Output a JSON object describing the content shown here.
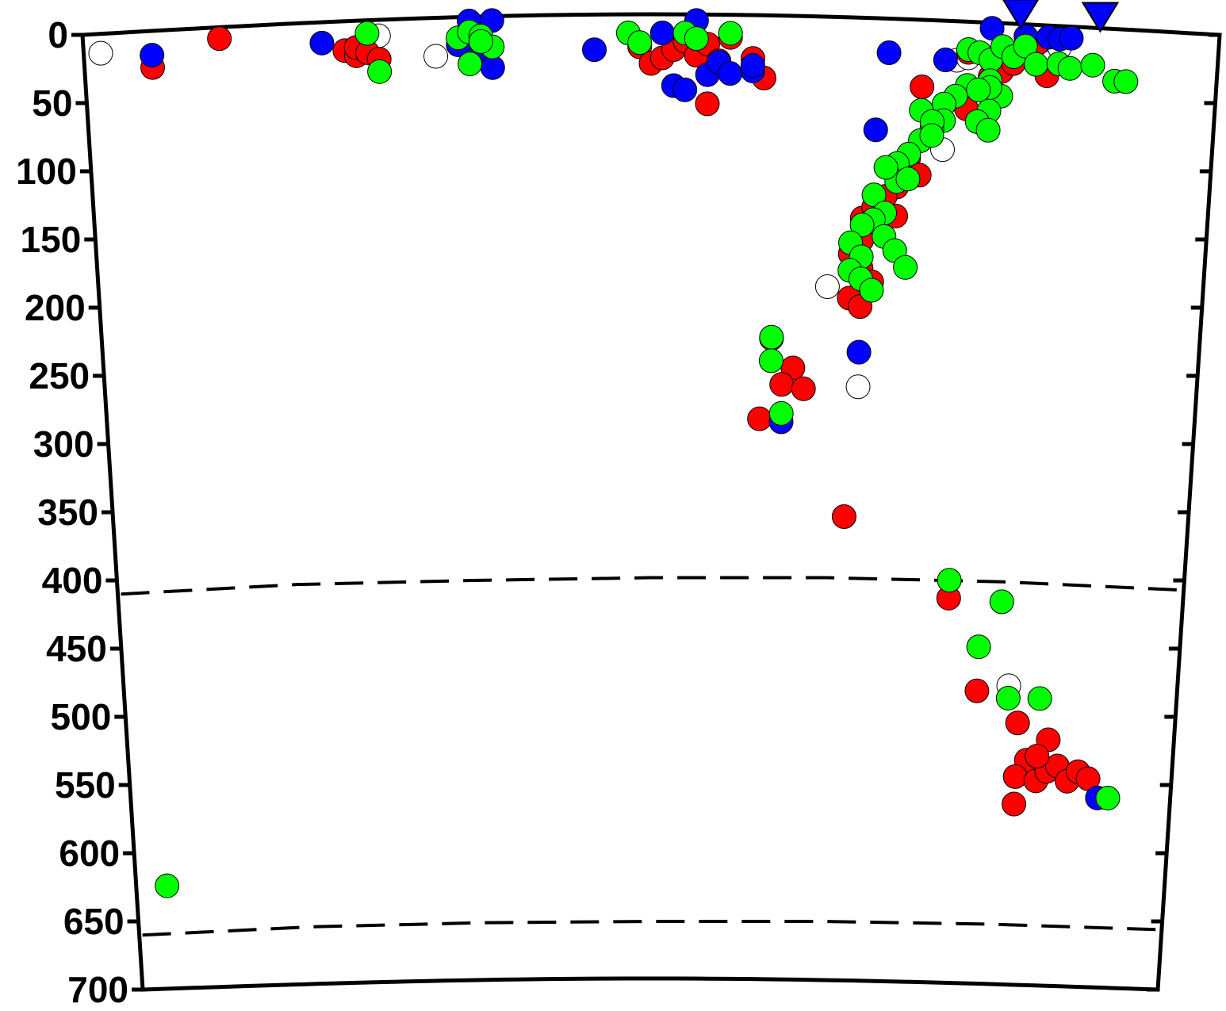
{
  "chart_data": {
    "type": "scatter",
    "y_axis": {
      "ticks": [
        "0",
        "50",
        "100",
        "150",
        "200",
        "250",
        "300",
        "350",
        "400",
        "450",
        "500",
        "550",
        "600",
        "650",
        "700"
      ],
      "range": [
        0,
        700
      ],
      "inverted": true
    },
    "x_axis": {
      "ticks": [],
      "range": [
        0,
        100
      ]
    },
    "grid": false,
    "legend": "none",
    "colors": {
      "red": "#ff0000",
      "blue": "#0000ff",
      "green": "#00ff00",
      "white": "#ffffff",
      "station": "#0000ff"
    },
    "discontinuities": [
      {
        "style": "dashed",
        "y": [
          410,
          403,
          400,
          398,
          398,
          401,
          407
        ]
      },
      {
        "style": "dashed",
        "y": [
          660,
          654,
          651,
          650,
          650,
          652,
          656
        ]
      }
    ],
    "stations": [
      {
        "x": 82.5
      },
      {
        "x": 89.5
      }
    ],
    "series": [
      {
        "color": "white",
        "points": [
          [
            1.5,
            14
          ],
          [
            26,
            9
          ],
          [
            31,
            25
          ],
          [
            77,
            26
          ],
          [
            78,
            24
          ],
          [
            81,
            17
          ],
          [
            84,
            12
          ],
          [
            85,
            26
          ],
          [
            86,
            14
          ],
          [
            76,
            91
          ],
          [
            66,
            192
          ],
          [
            69,
            264
          ],
          [
            84,
            479
          ]
        ]
      },
      {
        "color": "red",
        "points": [
          [
            6,
            26
          ],
          [
            12,
            7
          ],
          [
            23,
            19
          ],
          [
            24,
            23
          ],
          [
            24,
            17
          ],
          [
            25,
            21
          ],
          [
            26,
            26
          ],
          [
            49,
            20
          ],
          [
            50,
            32
          ],
          [
            51,
            28
          ],
          [
            52,
            22
          ],
          [
            53,
            16
          ],
          [
            54,
            26
          ],
          [
            55,
            18
          ],
          [
            56,
            30
          ],
          [
            57,
            13
          ],
          [
            59,
            28
          ],
          [
            60,
            42
          ],
          [
            55,
            61
          ],
          [
            78,
            20
          ],
          [
            80,
            37
          ],
          [
            81,
            33
          ],
          [
            82,
            27
          ],
          [
            84,
            12
          ],
          [
            85,
            35
          ],
          [
            74,
            46
          ],
          [
            78,
            61
          ],
          [
            73,
            98
          ],
          [
            74,
            110
          ],
          [
            72,
            119
          ],
          [
            71,
            126
          ],
          [
            72,
            140
          ],
          [
            70,
            149
          ],
          [
            69,
            158
          ],
          [
            68,
            168
          ],
          [
            69,
            178
          ],
          [
            70,
            188
          ],
          [
            68,
            200
          ],
          [
            69,
            206
          ],
          [
            69,
            142
          ],
          [
            70,
            134
          ],
          [
            61,
            230
          ],
          [
            63,
            251
          ],
          [
            62,
            263
          ],
          [
            64,
            266
          ],
          [
            60,
            288
          ],
          [
            68,
            358
          ],
          [
            78,
            416
          ],
          [
            81,
            483
          ],
          [
            85,
            506
          ],
          [
            88,
            518
          ],
          [
            86,
            533
          ],
          [
            85,
            545
          ],
          [
            87,
            548
          ],
          [
            88,
            541
          ],
          [
            89,
            537
          ],
          [
            90,
            548
          ],
          [
            91,
            541
          ],
          [
            92,
            546
          ],
          [
            85,
            565
          ],
          [
            87,
            530
          ]
        ]
      },
      {
        "color": "blue",
        "points": [
          [
            6,
            17
          ],
          [
            21,
            13
          ],
          [
            33,
            17
          ],
          [
            34,
            0
          ],
          [
            36,
            0
          ],
          [
            35,
            24
          ],
          [
            36,
            34
          ],
          [
            45,
            22
          ],
          [
            51,
            10
          ],
          [
            52,
            48
          ],
          [
            53,
            51
          ],
          [
            54,
            1
          ],
          [
            55,
            40
          ],
          [
            56,
            31
          ],
          [
            57,
            39
          ],
          [
            59,
            37
          ],
          [
            59,
            33
          ],
          [
            71,
            22
          ],
          [
            76,
            26
          ],
          [
            80,
            2
          ],
          [
            83,
            7
          ],
          [
            85,
            7
          ],
          [
            86,
            8
          ],
          [
            87,
            7
          ],
          [
            70,
            78
          ],
          [
            69,
            239
          ],
          [
            62,
            290
          ],
          [
            93,
            560
          ]
        ]
      },
      {
        "color": "green",
        "points": [
          [
            25,
            7
          ],
          [
            26,
            35
          ],
          [
            33,
            12
          ],
          [
            34,
            8
          ],
          [
            35,
            11
          ],
          [
            36,
            19
          ],
          [
            35,
            15
          ],
          [
            34,
            31
          ],
          [
            48,
            10
          ],
          [
            49,
            17
          ],
          [
            53,
            10
          ],
          [
            54,
            14
          ],
          [
            57,
            10
          ],
          [
            78,
            18
          ],
          [
            79,
            20
          ],
          [
            80,
            25
          ],
          [
            81,
            15
          ],
          [
            82,
            22
          ],
          [
            83,
            14
          ],
          [
            84,
            27
          ],
          [
            86,
            26
          ],
          [
            87,
            29
          ],
          [
            89,
            26
          ],
          [
            91,
            37
          ],
          [
            92,
            37
          ],
          [
            78,
            44
          ],
          [
            77,
            52
          ],
          [
            76,
            58
          ],
          [
            76,
            70
          ],
          [
            75,
            76
          ],
          [
            74,
            85
          ],
          [
            73,
            95
          ],
          [
            72,
            102
          ],
          [
            72,
            115
          ],
          [
            70,
            125
          ],
          [
            71,
            138
          ],
          [
            70,
            143
          ],
          [
            69,
            147
          ],
          [
            68,
            160
          ],
          [
            69,
            170
          ],
          [
            68,
            180
          ],
          [
            69,
            186
          ],
          [
            70,
            194
          ],
          [
            71,
            155
          ],
          [
            72,
            165
          ],
          [
            73,
            177
          ],
          [
            74,
            63
          ],
          [
            75,
            71
          ],
          [
            75,
            81
          ],
          [
            73,
            113
          ],
          [
            71,
            105
          ],
          [
            81,
            51
          ],
          [
            80,
            62
          ],
          [
            79,
            70
          ],
          [
            80,
            76
          ],
          [
            80,
            40
          ],
          [
            80,
            45
          ],
          [
            79,
            47
          ],
          [
            61,
            229
          ],
          [
            61,
            246
          ],
          [
            62,
            284
          ],
          [
            78,
            403
          ],
          [
            83,
            418
          ],
          [
            81,
            451
          ],
          [
            84,
            488
          ],
          [
            87,
            488
          ],
          [
            3,
            624
          ],
          [
            94,
            560
          ]
        ]
      }
    ]
  }
}
